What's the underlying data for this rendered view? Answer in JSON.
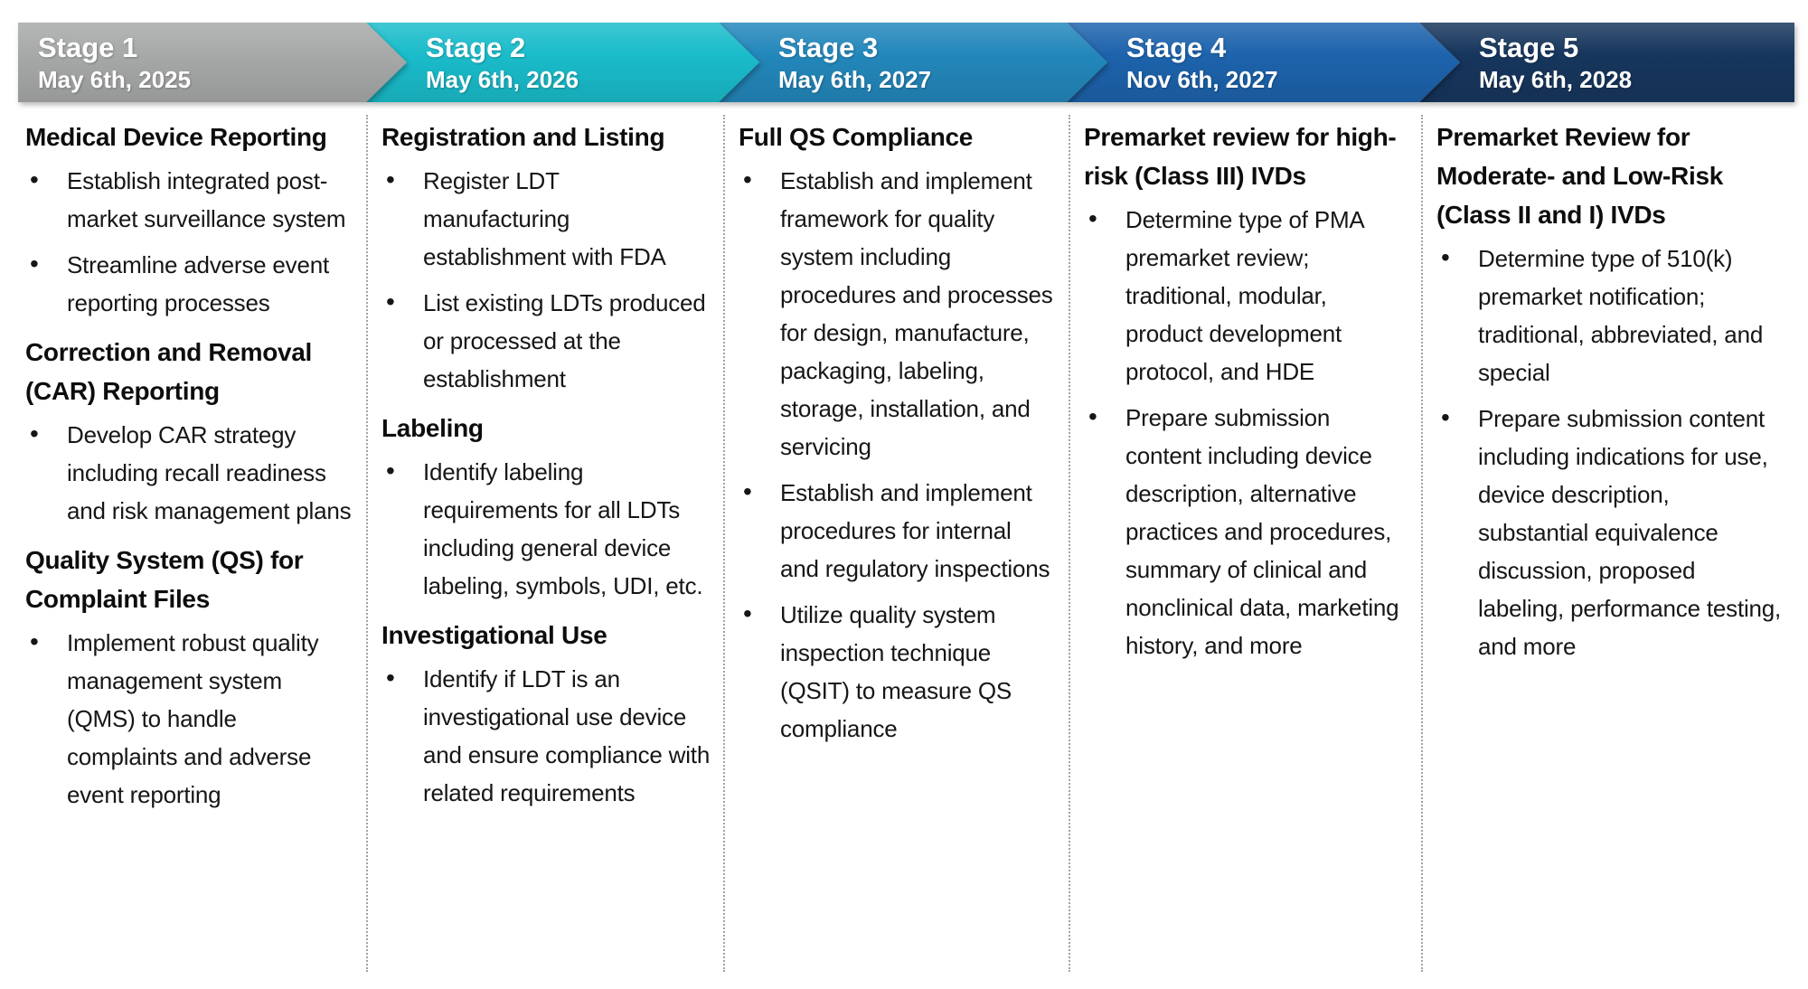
{
  "divider_color": "#a3a3a3",
  "text_color": "#161616",
  "stages": [
    {
      "label": "Stage 1",
      "date": "May 6th, 2025",
      "color": "#a7a9a8"
    },
    {
      "label": "Stage 2",
      "date": "May 6th, 2026",
      "color": "#1abccb"
    },
    {
      "label": "Stage 3",
      "date": "May 6th, 2027",
      "color": "#2387bb"
    },
    {
      "label": "Stage 4",
      "date": "Nov 6th, 2027",
      "color": "#1d63ac"
    },
    {
      "label": "Stage 5",
      "date": "May 6th, 2028",
      "color": "#17365d"
    }
  ],
  "columns": [
    {
      "sections": [
        {
          "heading": "Medical Device Reporting",
          "bullets": [
            "Establish integrated post-market surveillance system",
            "Streamline adverse event reporting processes"
          ]
        },
        {
          "heading": "Correction and Removal (CAR) Reporting",
          "bullets": [
            "Develop CAR strategy including recall readiness and risk management plans"
          ]
        },
        {
          "heading": "Quality System (QS) for Complaint Files",
          "bullets": [
            "Implement robust quality management system (QMS) to handle complaints and adverse event reporting"
          ]
        }
      ]
    },
    {
      "sections": [
        {
          "heading": "Registration and Listing",
          "bullets": [
            "Register LDT manufacturing establishment with FDA",
            "List existing LDTs produced or processed at the establishment"
          ]
        },
        {
          "heading": "Labeling",
          "bullets": [
            "Identify labeling requirements for all LDTs including general device labeling, symbols, UDI, etc."
          ]
        },
        {
          "heading": "Investigational Use",
          "bullets": [
            "Identify if LDT is an investigational use device and ensure compliance with related requirements"
          ]
        }
      ]
    },
    {
      "sections": [
        {
          "heading": "Full QS Compliance",
          "bullets": [
            "Establish and implement framework for quality system including procedures and processes for design, manufacture, packaging, labeling, storage, installation, and servicing",
            "Establish and implement procedures for internal and regulatory inspections",
            "Utilize quality system inspection technique (QSIT) to measure QS compliance"
          ]
        }
      ]
    },
    {
      "sections": [
        {
          "heading": "Premarket review for high-risk (Class III) IVDs",
          "bullets": [
            "Determine type of PMA premarket review; traditional, modular, product development protocol, and HDE",
            "Prepare submission content including device description, alternative practices and procedures, summary of clinical and nonclinical data, marketing history, and more"
          ]
        }
      ]
    },
    {
      "sections": [
        {
          "heading": "Premarket Review for Moderate- and Low-Risk (Class II and I) IVDs",
          "bullets": [
            "Determine type of 510(k) premarket notification; traditional, abbreviated, and special",
            "Prepare submission content including indications for use, device description, substantial equivalence discussion, proposed labeling, performance testing, and more"
          ]
        }
      ]
    }
  ]
}
